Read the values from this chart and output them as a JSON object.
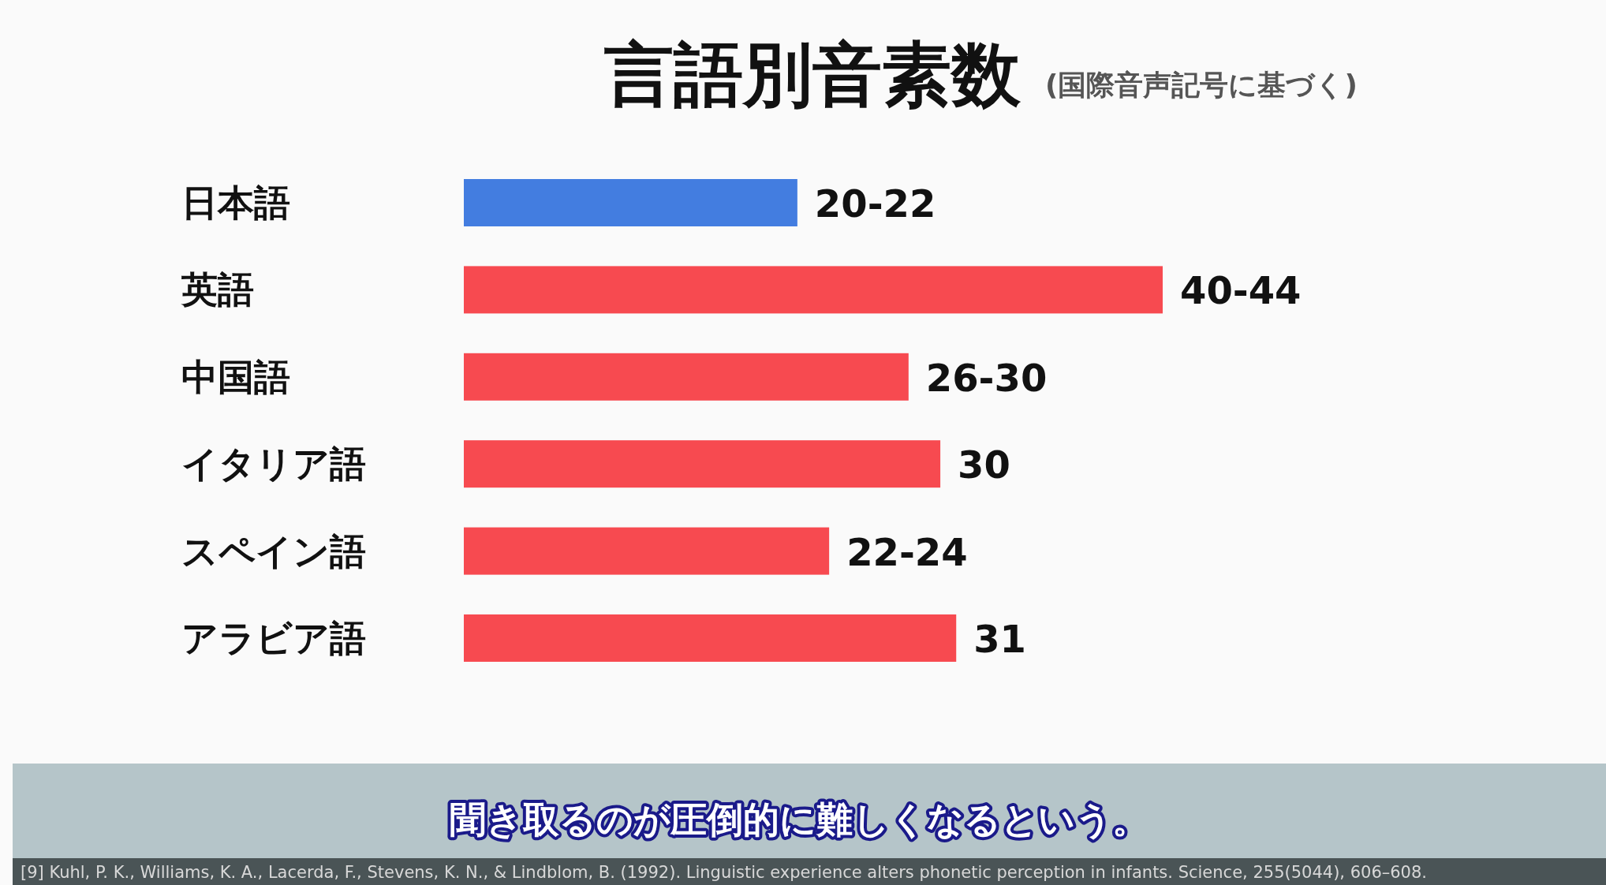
{
  "chart_data": {
    "type": "bar",
    "orientation": "horizontal",
    "title": "言語別音素数",
    "subtitle": "(国際音声記号に基づく)",
    "categories": [
      "日本語",
      "英語",
      "中国語",
      "イタリア語",
      "スペイン語",
      "アラビア語"
    ],
    "values": [
      21,
      44,
      28,
      30,
      23,
      31
    ],
    "colors": [
      "#437de0",
      "#f74a50",
      "#f74a50",
      "#f74a50",
      "#f74a50",
      "#f74a50"
    ],
    "value_labels": [
      "20-22",
      "40-44",
      "26-30",
      "30",
      "22-24",
      "31"
    ],
    "annotations": [
      "聞き取るのが圧倒的に難しくなるという。",
      "[9] Kuhl, P. K., Williams, K. A., Lacerda, F., Stevens, K. N., & Lindblom, B. (1992). Linguistic experience alters phonetic perception in infants. Science, 255(5044), 606–608."
    ]
  }
}
